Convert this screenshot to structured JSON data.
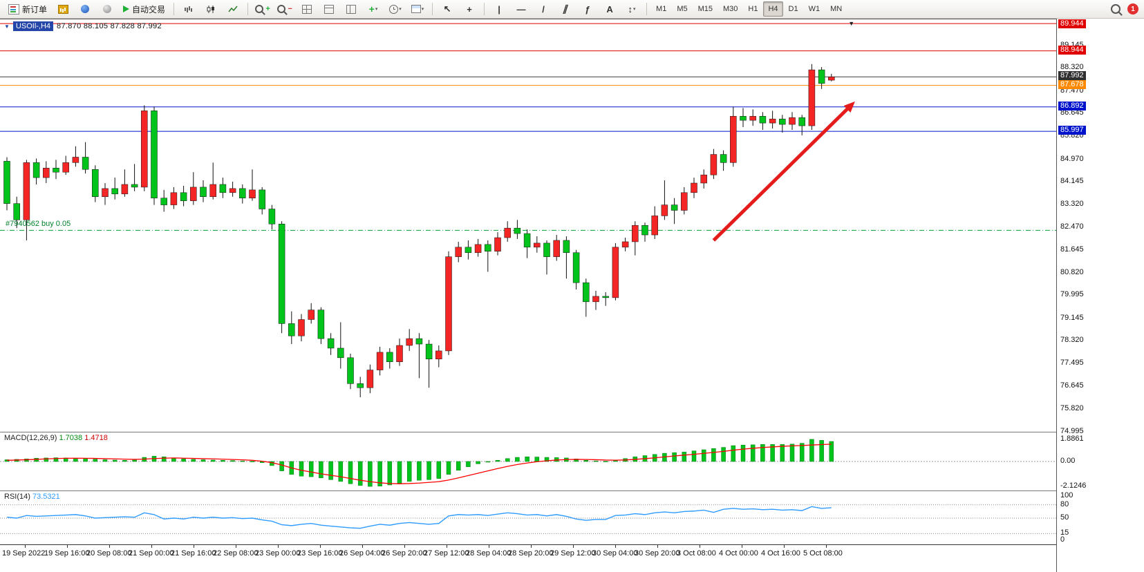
{
  "toolbar": {
    "new_order_label": "新订单",
    "autotrading_label": "自动交易",
    "timeframes": [
      "M1",
      "M5",
      "M15",
      "M30",
      "H1",
      "H4",
      "D1",
      "W1",
      "MN"
    ],
    "active_timeframe": "H4",
    "notification_count": "1",
    "tool_glyphs": {
      "cursor": "↖",
      "crosshair": "+",
      "vertical_line": "|",
      "horizontal_line": "—",
      "trendline": "/",
      "channel": "∥",
      "fibonacci": "ƒ",
      "text_tool": "A",
      "arrows_tool": "↕"
    }
  },
  "icons": {
    "caret": "▾",
    "menu_triangle": "▼",
    "shift_marker": "▼"
  },
  "window": {
    "title": "USOIl-,H4",
    "ohlc": "87.870 88.105 87.828 87.992"
  },
  "chart_data": {
    "type": "candlestick",
    "symbol": "USOIl-,H4",
    "timeframe": "H4",
    "up_color": "#f42525",
    "down_color": "#00c31c",
    "price_axis_ticks": [
      89.145,
      88.32,
      87.47,
      86.645,
      85.82,
      84.97,
      84.145,
      83.32,
      82.47,
      81.645,
      80.82,
      79.995,
      79.145,
      78.32,
      77.495,
      76.645,
      75.82,
      74.995
    ],
    "levels": [
      {
        "price": 89.944,
        "label": "89.944",
        "color": "#e00000",
        "tag_bg": "#e00000"
      },
      {
        "price": 88.944,
        "label": "88.944",
        "color": "#e00000",
        "tag_bg": "#e00000"
      },
      {
        "price": 87.992,
        "label": "87.992",
        "color": "#3c3c3c",
        "tag_bg": "#2f2f2f"
      },
      {
        "price": 87.678,
        "label": "87.678",
        "color": "#ff8a00",
        "tag_bg": "#ff8a00"
      },
      {
        "price": 86.892,
        "label": "86.892",
        "color": "#0013cc",
        "tag_bg": "#0013cc"
      },
      {
        "price": 85.997,
        "label": "85.997",
        "color": "#0013cc",
        "tag_bg": "#0013cc"
      }
    ],
    "position_line": {
      "price": 82.37,
      "label": "#7940562 buy 0.05",
      "color": "#00a32e"
    },
    "trend_arrow": {
      "from_candle": 72,
      "from_price": 82.0,
      "to_candle": 86,
      "to_price": 86.95,
      "color": "#e51c1c"
    },
    "shift_marker_candle": 86,
    "candles": [
      [
        84.9,
        85.05,
        83.1,
        83.35
      ],
      [
        83.35,
        83.6,
        82.45,
        82.75
      ],
      [
        82.75,
        84.95,
        82.0,
        84.85
      ],
      [
        84.85,
        85.0,
        84.05,
        84.3
      ],
      [
        84.3,
        84.9,
        84.1,
        84.65
      ],
      [
        84.65,
        84.95,
        84.25,
        84.5
      ],
      [
        84.5,
        85.1,
        84.4,
        84.85
      ],
      [
        84.85,
        85.45,
        84.7,
        85.05
      ],
      [
        85.05,
        85.6,
        84.45,
        84.6
      ],
      [
        84.6,
        84.75,
        83.4,
        83.6
      ],
      [
        83.6,
        84.1,
        83.3,
        83.9
      ],
      [
        83.9,
        84.3,
        83.5,
        83.7
      ],
      [
        83.7,
        84.6,
        83.6,
        84.05
      ],
      [
        84.05,
        84.8,
        83.8,
        83.95
      ],
      [
        83.95,
        86.95,
        83.8,
        86.75
      ],
      [
        86.75,
        86.9,
        83.3,
        83.55
      ],
      [
        83.55,
        83.85,
        83.05,
        83.3
      ],
      [
        83.3,
        83.95,
        83.15,
        83.75
      ],
      [
        83.75,
        84.0,
        83.25,
        83.45
      ],
      [
        83.45,
        84.5,
        83.3,
        83.95
      ],
      [
        83.95,
        84.2,
        83.4,
        83.6
      ],
      [
        83.6,
        84.85,
        83.5,
        84.05
      ],
      [
        84.05,
        84.3,
        83.55,
        83.75
      ],
      [
        83.75,
        84.15,
        83.6,
        83.9
      ],
      [
        83.9,
        84.05,
        83.35,
        83.55
      ],
      [
        83.55,
        84.6,
        83.45,
        83.85
      ],
      [
        83.85,
        83.95,
        82.95,
        83.15
      ],
      [
        83.15,
        83.3,
        82.4,
        82.6
      ],
      [
        82.6,
        82.7,
        78.6,
        78.95
      ],
      [
        78.95,
        79.4,
        78.2,
        78.5
      ],
      [
        78.5,
        79.3,
        78.3,
        79.1
      ],
      [
        79.1,
        79.7,
        78.95,
        79.45
      ],
      [
        79.45,
        79.55,
        78.2,
        78.4
      ],
      [
        78.4,
        78.6,
        77.8,
        78.05
      ],
      [
        78.05,
        79.0,
        77.3,
        77.7
      ],
      [
        77.7,
        77.85,
        76.55,
        76.75
      ],
      [
        76.75,
        77.0,
        76.25,
        76.6
      ],
      [
        76.6,
        77.45,
        76.4,
        77.25
      ],
      [
        77.25,
        78.1,
        77.05,
        77.9
      ],
      [
        77.9,
        78.05,
        77.3,
        77.55
      ],
      [
        77.55,
        78.4,
        77.4,
        78.15
      ],
      [
        78.15,
        78.75,
        77.95,
        78.4
      ],
      [
        78.4,
        78.6,
        76.95,
        78.2
      ],
      [
        78.2,
        78.35,
        76.6,
        77.65
      ],
      [
        77.65,
        78.15,
        77.35,
        77.95
      ],
      [
        77.95,
        81.6,
        77.8,
        81.4
      ],
      [
        81.4,
        81.95,
        81.2,
        81.75
      ],
      [
        81.75,
        82.0,
        81.3,
        81.55
      ],
      [
        81.55,
        82.05,
        81.4,
        81.85
      ],
      [
        81.85,
        82.0,
        80.85,
        81.6
      ],
      [
        81.6,
        82.3,
        81.45,
        82.1
      ],
      [
        82.1,
        82.7,
        81.95,
        82.45
      ],
      [
        82.45,
        82.75,
        82.05,
        82.25
      ],
      [
        82.25,
        82.4,
        81.35,
        81.75
      ],
      [
        81.75,
        82.15,
        81.55,
        81.9
      ],
      [
        81.9,
        82.0,
        80.75,
        81.4
      ],
      [
        81.4,
        82.2,
        81.25,
        82.0
      ],
      [
        82.0,
        82.15,
        80.6,
        81.55
      ],
      [
        81.55,
        81.65,
        80.2,
        80.45
      ],
      [
        80.45,
        80.6,
        79.2,
        79.75
      ],
      [
        79.75,
        80.15,
        79.45,
        79.95
      ],
      [
        79.95,
        80.1,
        79.6,
        79.9
      ],
      [
        79.9,
        81.9,
        79.8,
        81.75
      ],
      [
        81.75,
        82.1,
        81.6,
        81.95
      ],
      [
        81.95,
        82.7,
        81.45,
        82.55
      ],
      [
        82.55,
        82.65,
        81.95,
        82.2
      ],
      [
        82.2,
        83.25,
        82.05,
        82.9
      ],
      [
        82.9,
        84.2,
        82.75,
        83.3
      ],
      [
        83.3,
        83.55,
        82.6,
        83.1
      ],
      [
        83.1,
        83.95,
        82.95,
        83.75
      ],
      [
        83.75,
        84.3,
        83.55,
        84.1
      ],
      [
        84.1,
        84.6,
        83.9,
        84.4
      ],
      [
        84.4,
        85.35,
        84.25,
        85.15
      ],
      [
        85.15,
        85.3,
        84.55,
        84.85
      ],
      [
        84.85,
        86.9,
        84.7,
        86.55
      ],
      [
        86.55,
        86.85,
        86.15,
        86.4
      ],
      [
        86.4,
        86.8,
        86.2,
        86.55
      ],
      [
        86.55,
        86.7,
        86.05,
        86.3
      ],
      [
        86.3,
        86.75,
        86.1,
        86.45
      ],
      [
        86.45,
        86.6,
        85.95,
        86.25
      ],
      [
        86.25,
        86.7,
        86.05,
        86.5
      ],
      [
        86.5,
        86.6,
        85.85,
        86.2
      ],
      [
        86.2,
        88.46,
        86.05,
        88.25
      ],
      [
        88.25,
        88.35,
        87.55,
        87.75
      ],
      [
        87.87,
        88.105,
        87.828,
        87.992
      ]
    ],
    "time_labels": [
      "19 Sep 2022",
      "19 Sep 16:00",
      "20 Sep 08:00",
      "21 Sep 00:00",
      "21 Sep 16:00",
      "22 Sep 08:00",
      "23 Sep 00:00",
      "23 Sep 16:00",
      "26 Sep 04:00",
      "26 Sep 20:00",
      "27 Sep 12:00",
      "28 Sep 04:00",
      "28 Sep 20:00",
      "29 Sep 12:00",
      "30 Sep 04:00",
      "30 Sep 20:00",
      "3 Oct 08:00",
      "4 Oct 00:00",
      "4 Oct 16:00",
      "5 Oct 08:00"
    ],
    "macd": {
      "header": "MACD(12,26,9)",
      "main_value": "1.7038",
      "signal_value": "1.4718",
      "axis": [
        "1.8861",
        "0.00",
        "-2.1246"
      ],
      "hist_color": "#00c31c",
      "signal_color": "#ff0000",
      "histogram": [
        0.15,
        0.18,
        0.22,
        0.28,
        0.3,
        0.32,
        0.3,
        0.28,
        0.25,
        0.2,
        0.15,
        0.12,
        0.1,
        0.12,
        0.35,
        0.45,
        0.4,
        0.3,
        0.22,
        0.18,
        0.15,
        0.12,
        0.1,
        0.08,
        0.05,
        0.02,
        -0.1,
        -0.35,
        -0.8,
        -1.1,
        -1.25,
        -1.3,
        -1.4,
        -1.55,
        -1.7,
        -1.9,
        -2.05,
        -2.1246,
        -2.1,
        -2.0,
        -1.85,
        -1.7,
        -1.6,
        -1.55,
        -1.45,
        -1.1,
        -0.75,
        -0.45,
        -0.2,
        -0.05,
        0.1,
        0.25,
        0.35,
        0.4,
        0.38,
        0.35,
        0.33,
        0.3,
        0.22,
        0.1,
        0.05,
        0.02,
        0.1,
        0.25,
        0.4,
        0.5,
        0.6,
        0.7,
        0.75,
        0.8,
        0.9,
        1.0,
        1.1,
        1.2,
        1.35,
        1.4,
        1.42,
        1.45,
        1.45,
        1.45,
        1.48,
        1.55,
        1.8861,
        1.8,
        1.7038
      ],
      "signal": [
        0.1,
        0.12,
        0.15,
        0.18,
        0.22,
        0.25,
        0.27,
        0.28,
        0.27,
        0.26,
        0.24,
        0.22,
        0.2,
        0.18,
        0.2,
        0.25,
        0.28,
        0.3,
        0.28,
        0.26,
        0.24,
        0.22,
        0.2,
        0.17,
        0.14,
        0.1,
        0.02,
        -0.1,
        -0.3,
        -0.55,
        -0.75,
        -0.9,
        -1.05,
        -1.18,
        -1.3,
        -1.45,
        -1.6,
        -1.72,
        -1.82,
        -1.88,
        -1.9,
        -1.88,
        -1.84,
        -1.78,
        -1.72,
        -1.58,
        -1.4,
        -1.2,
        -1.0,
        -0.8,
        -0.6,
        -0.42,
        -0.26,
        -0.13,
        -0.02,
        0.06,
        0.12,
        0.16,
        0.18,
        0.17,
        0.15,
        0.12,
        0.11,
        0.13,
        0.18,
        0.24,
        0.31,
        0.39,
        0.47,
        0.54,
        0.61,
        0.69,
        0.77,
        0.86,
        0.96,
        1.05,
        1.12,
        1.19,
        1.24,
        1.29,
        1.33,
        1.36,
        1.4,
        1.44,
        1.4718
      ]
    },
    "rsi": {
      "header": "RSI(14)",
      "value": "73.5321",
      "line_color": "#2e9bff",
      "axis": [
        "100",
        "80",
        "50",
        "15",
        "0"
      ],
      "levels": [
        80,
        50,
        15
      ],
      "values": [
        52,
        50,
        56,
        54,
        55,
        56,
        57,
        58,
        55,
        50,
        51,
        52,
        53,
        52,
        62,
        58,
        48,
        50,
        48,
        52,
        50,
        52,
        50,
        51,
        49,
        50,
        46,
        43,
        35,
        33,
        36,
        38,
        34,
        32,
        30,
        28,
        27,
        32,
        36,
        34,
        38,
        40,
        38,
        36,
        38,
        55,
        58,
        57,
        58,
        56,
        59,
        62,
        60,
        57,
        58,
        55,
        58,
        54,
        48,
        45,
        47,
        47,
        56,
        57,
        60,
        58,
        62,
        64,
        62,
        65,
        66,
        68,
        63,
        70,
        72,
        70,
        71,
        69,
        70,
        68,
        69,
        67,
        76,
        72,
        73.5321
      ]
    }
  }
}
